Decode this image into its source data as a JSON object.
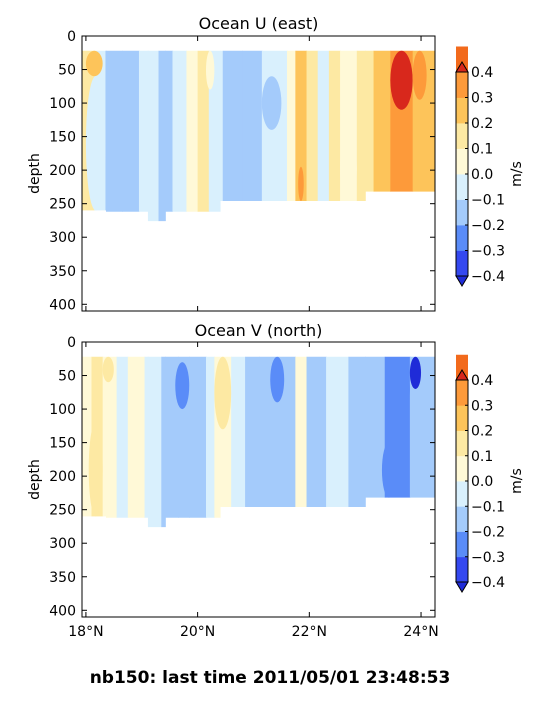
{
  "footer": {
    "text": "nb150: last time 2011/05/01 23:48:53"
  },
  "chart_data": [
    {
      "type": "heatmap",
      "title": "Ocean U (east)",
      "ylabel": "depth",
      "xlabel": "",
      "xlim": [
        17.93,
        24.25
      ],
      "ylim": [
        410,
        0
      ],
      "yticks": [
        0,
        50,
        100,
        150,
        200,
        250,
        300,
        350,
        400
      ],
      "xticks": [
        {
          "value": 18,
          "label": "18°N"
        },
        {
          "value": 20,
          "label": "20°N"
        },
        {
          "value": 22,
          "label": "22°N"
        },
        {
          "value": 24,
          "label": "24°N"
        }
      ],
      "show_xtick_labels": false,
      "colorbar": {
        "label": "m/s",
        "levels": [
          -0.4,
          -0.3,
          -0.2,
          -0.1,
          0.0,
          0.1,
          0.2,
          0.3,
          0.4
        ],
        "tick_labels": [
          "−0.4",
          "−0.3",
          "−0.2",
          "−0.1",
          "0.0",
          "0.1",
          "0.2",
          "0.3",
          "0.4"
        ],
        "colors": [
          "#3448f0",
          "#5a8cf8",
          "#a4cbfb",
          "#d9f0fd",
          "#fff9d7",
          "#fde9a3",
          "#fdc45a",
          "#fd9a3a",
          "#f26a1c"
        ],
        "under_color": "#1f2bd8",
        "over_color": "#d8281c",
        "extend": "both"
      },
      "top_depth": 22,
      "bottom_depth": [
        {
          "to": 18.36,
          "depth": 260
        },
        {
          "to": 19.11,
          "depth": 262
        },
        {
          "to": 19.42,
          "depth": 276
        },
        {
          "to": 20.4,
          "depth": 262
        },
        {
          "to": 23.0,
          "depth": 246
        },
        {
          "to": 24.25,
          "depth": 232
        }
      ],
      "columns": [
        {
          "to": 18.15,
          "value": 0.15
        },
        {
          "to": 18.35,
          "value": -0.05
        },
        {
          "to": 18.65,
          "value": -0.12
        },
        {
          "to": 18.95,
          "value": -0.18
        },
        {
          "to": 19.3,
          "value": -0.05
        },
        {
          "to": 19.55,
          "value": -0.12
        },
        {
          "to": 19.8,
          "value": -0.05
        },
        {
          "to": 20.0,
          "value": 0.05
        },
        {
          "to": 20.2,
          "value": 0.15
        },
        {
          "to": 20.45,
          "value": -0.05
        },
        {
          "to": 20.8,
          "value": -0.12
        },
        {
          "to": 21.15,
          "value": -0.2
        },
        {
          "to": 21.6,
          "value": -0.05
        },
        {
          "to": 21.75,
          "value": 0.05
        },
        {
          "to": 21.95,
          "value": 0.2
        },
        {
          "to": 22.15,
          "value": 0.15
        },
        {
          "to": 22.35,
          "value": -0.05
        },
        {
          "to": 22.55,
          "value": 0.15
        },
        {
          "to": 22.85,
          "value": 0.05
        },
        {
          "to": 23.15,
          "value": 0.15
        },
        {
          "to": 23.45,
          "value": 0.25
        },
        {
          "to": 23.85,
          "value": 0.35
        },
        {
          "to": 24.25,
          "value": 0.25
        }
      ],
      "blobs": [
        {
          "x0": 23.45,
          "x1": 23.85,
          "y0": 22,
          "y1": 110,
          "value": 0.45
        },
        {
          "x0": 23.85,
          "x1": 24.1,
          "y0": 22,
          "y1": 95,
          "value": 0.35
        },
        {
          "x0": 22.55,
          "x1": 22.85,
          "y0": 150,
          "y1": 246,
          "value": 0.05
        },
        {
          "x0": 21.8,
          "x1": 21.9,
          "y0": 195,
          "y1": 246,
          "value": 0.35
        },
        {
          "x0": 18.0,
          "x1": 18.3,
          "y0": 22,
          "y1": 60,
          "value": 0.25
        },
        {
          "x0": 18.0,
          "x1": 18.35,
          "y0": 60,
          "y1": 260,
          "value": -0.05
        },
        {
          "x0": 20.15,
          "x1": 20.3,
          "y0": 22,
          "y1": 80,
          "value": 0.05
        },
        {
          "x0": 21.15,
          "x1": 21.5,
          "y0": 60,
          "y1": 140,
          "value": -0.12
        }
      ]
    },
    {
      "type": "heatmap",
      "title": "Ocean V (north)",
      "ylabel": "depth",
      "xlabel": "",
      "xlim": [
        17.93,
        24.25
      ],
      "ylim": [
        410,
        0
      ],
      "yticks": [
        0,
        50,
        100,
        150,
        200,
        250,
        300,
        350,
        400
      ],
      "xticks": [
        {
          "value": 18,
          "label": "18°N"
        },
        {
          "value": 20,
          "label": "20°N"
        },
        {
          "value": 22,
          "label": "22°N"
        },
        {
          "value": 24,
          "label": "24°N"
        }
      ],
      "show_xtick_labels": true,
      "colorbar": {
        "label": "m/s",
        "levels": [
          -0.4,
          -0.3,
          -0.2,
          -0.1,
          0.0,
          0.1,
          0.2,
          0.3,
          0.4
        ],
        "tick_labels": [
          "−0.4",
          "−0.3",
          "−0.2",
          "−0.1",
          "0.0",
          "0.1",
          "0.2",
          "0.3",
          "0.4"
        ],
        "colors": [
          "#3448f0",
          "#5a8cf8",
          "#a4cbfb",
          "#d9f0fd",
          "#fff9d7",
          "#fde9a3",
          "#fdc45a",
          "#fd9a3a",
          "#f26a1c"
        ],
        "under_color": "#1f2bd8",
        "over_color": "#d8281c",
        "extend": "both"
      },
      "top_depth": 22,
      "bottom_depth": [
        {
          "to": 18.36,
          "depth": 260
        },
        {
          "to": 19.11,
          "depth": 262
        },
        {
          "to": 19.42,
          "depth": 276
        },
        {
          "to": 20.4,
          "depth": 262
        },
        {
          "to": 23.0,
          "depth": 246
        },
        {
          "to": 24.25,
          "depth": 232
        }
      ],
      "columns": [
        {
          "to": 18.1,
          "value": 0.05
        },
        {
          "to": 18.3,
          "value": 0.15
        },
        {
          "to": 18.55,
          "value": 0.05
        },
        {
          "to": 18.75,
          "value": -0.05
        },
        {
          "to": 19.05,
          "value": 0.05
        },
        {
          "to": 19.35,
          "value": -0.05
        },
        {
          "to": 19.65,
          "value": -0.12
        },
        {
          "to": 19.85,
          "value": -0.2
        },
        {
          "to": 20.15,
          "value": -0.12
        },
        {
          "to": 20.3,
          "value": -0.05
        },
        {
          "to": 20.6,
          "value": 0.05
        },
        {
          "to": 20.85,
          "value": -0.05
        },
        {
          "to": 21.1,
          "value": -0.12
        },
        {
          "to": 21.45,
          "value": -0.2
        },
        {
          "to": 21.75,
          "value": -0.12
        },
        {
          "to": 21.95,
          "value": 0.05
        },
        {
          "to": 22.3,
          "value": -0.12
        },
        {
          "to": 22.7,
          "value": -0.05
        },
        {
          "to": 23.0,
          "value": -0.12
        },
        {
          "to": 23.35,
          "value": -0.2
        },
        {
          "to": 23.8,
          "value": -0.25
        },
        {
          "to": 24.25,
          "value": -0.2
        }
      ],
      "blobs": [
        {
          "x0": 18.05,
          "x1": 18.3,
          "y0": 120,
          "y1": 260,
          "value": 0.15
        },
        {
          "x0": 18.3,
          "x1": 18.5,
          "y0": 22,
          "y1": 60,
          "value": 0.15
        },
        {
          "x0": 19.6,
          "x1": 19.85,
          "y0": 30,
          "y1": 100,
          "value": -0.3
        },
        {
          "x0": 20.3,
          "x1": 20.6,
          "y0": 22,
          "y1": 130,
          "value": 0.15
        },
        {
          "x0": 21.3,
          "x1": 21.55,
          "y0": 22,
          "y1": 90,
          "value": -0.3
        },
        {
          "x0": 23.4,
          "x1": 23.8,
          "y0": 30,
          "y1": 110,
          "value": -0.3
        },
        {
          "x0": 23.8,
          "x1": 24.0,
          "y0": 22,
          "y1": 70,
          "value": -0.45
        },
        {
          "x0": 23.3,
          "x1": 23.55,
          "y0": 150,
          "y1": 232,
          "value": -0.3
        },
        {
          "x0": 22.75,
          "x1": 23.0,
          "y0": 170,
          "y1": 246,
          "value": -0.2
        }
      ]
    }
  ]
}
